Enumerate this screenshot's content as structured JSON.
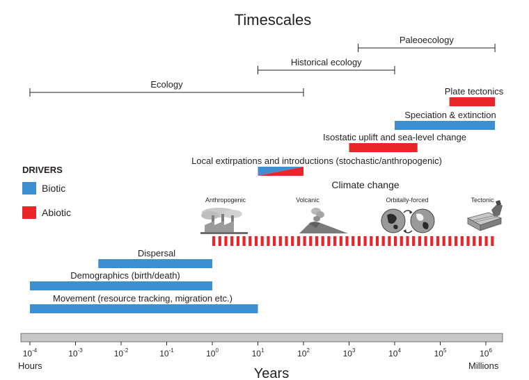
{
  "title": "Timescales",
  "x_axis": {
    "label": "Years",
    "left_end_label": "Hours",
    "right_end_label": "Millions",
    "ticks": [
      {
        "exponent": -4,
        "base": "10",
        "sup": "-4"
      },
      {
        "exponent": -3,
        "base": "10",
        "sup": "-3"
      },
      {
        "exponent": -2,
        "base": "10",
        "sup": "-2"
      },
      {
        "exponent": -1,
        "base": "10",
        "sup": "-1"
      },
      {
        "exponent": 0,
        "base": "10",
        "sup": "0"
      },
      {
        "exponent": 1,
        "base": "10",
        "sup": "1"
      },
      {
        "exponent": 2,
        "base": "10",
        "sup": "2"
      },
      {
        "exponent": 3,
        "base": "10",
        "sup": "3"
      },
      {
        "exponent": 4,
        "base": "10",
        "sup": "4"
      },
      {
        "exponent": 5,
        "base": "10",
        "sup": "5"
      },
      {
        "exponent": 6,
        "base": "10",
        "sup": "6"
      }
    ]
  },
  "fields": [
    {
      "label": "Paleoecology",
      "start": 3.2,
      "end": 6.2
    },
    {
      "label": "Historical ecology",
      "start": 1.0,
      "end": 4.0
    },
    {
      "label": "Ecology",
      "start": -4.0,
      "end": 2.0
    }
  ],
  "legend": {
    "title": "DRIVERS",
    "items": [
      {
        "label": "Biotic",
        "color": "#3d8fcf"
      },
      {
        "label": "Abiotic",
        "color": "#e8262a"
      }
    ]
  },
  "drivers": [
    {
      "label": "Plate tectonics",
      "type": "abiotic",
      "start": 5.2,
      "end": 6.2
    },
    {
      "label": "Speciation & extinction",
      "type": "biotic",
      "start": 4.0,
      "end": 6.2
    },
    {
      "label": "Isostatic uplift and sea-level change",
      "type": "abiotic",
      "start": 3.0,
      "end": 4.5
    },
    {
      "label": "Local extirpations and introductions (stochastic/anthropogenic)",
      "type": "mixed",
      "start": 1.0,
      "end": 2.0
    },
    {
      "label": "Dispersal",
      "type": "biotic",
      "start": -2.5,
      "end": 0.0
    },
    {
      "label": "Demographics (birth/death)",
      "type": "biotic",
      "start": -4.0,
      "end": 0.0
    },
    {
      "label": "Movement (resource tracking, migration etc.)",
      "type": "biotic",
      "start": -4.0,
      "end": 1.0
    }
  ],
  "climate": {
    "label": "Climate change",
    "type": "abiotic",
    "start": 0.0,
    "end": 6.2,
    "icons": [
      {
        "label": "Anthropogenic",
        "icon": "factory-icon",
        "at": 0.25
      },
      {
        "label": "Volcanic",
        "icon": "volcano-icon",
        "at": 2.0
      },
      {
        "label": "Orbitally-forced",
        "icon": "globe-orbit-icon",
        "at": 4.25
      },
      {
        "label": "Tectonic",
        "icon": "tectonic-block-icon",
        "at": 5.95
      }
    ]
  }
}
